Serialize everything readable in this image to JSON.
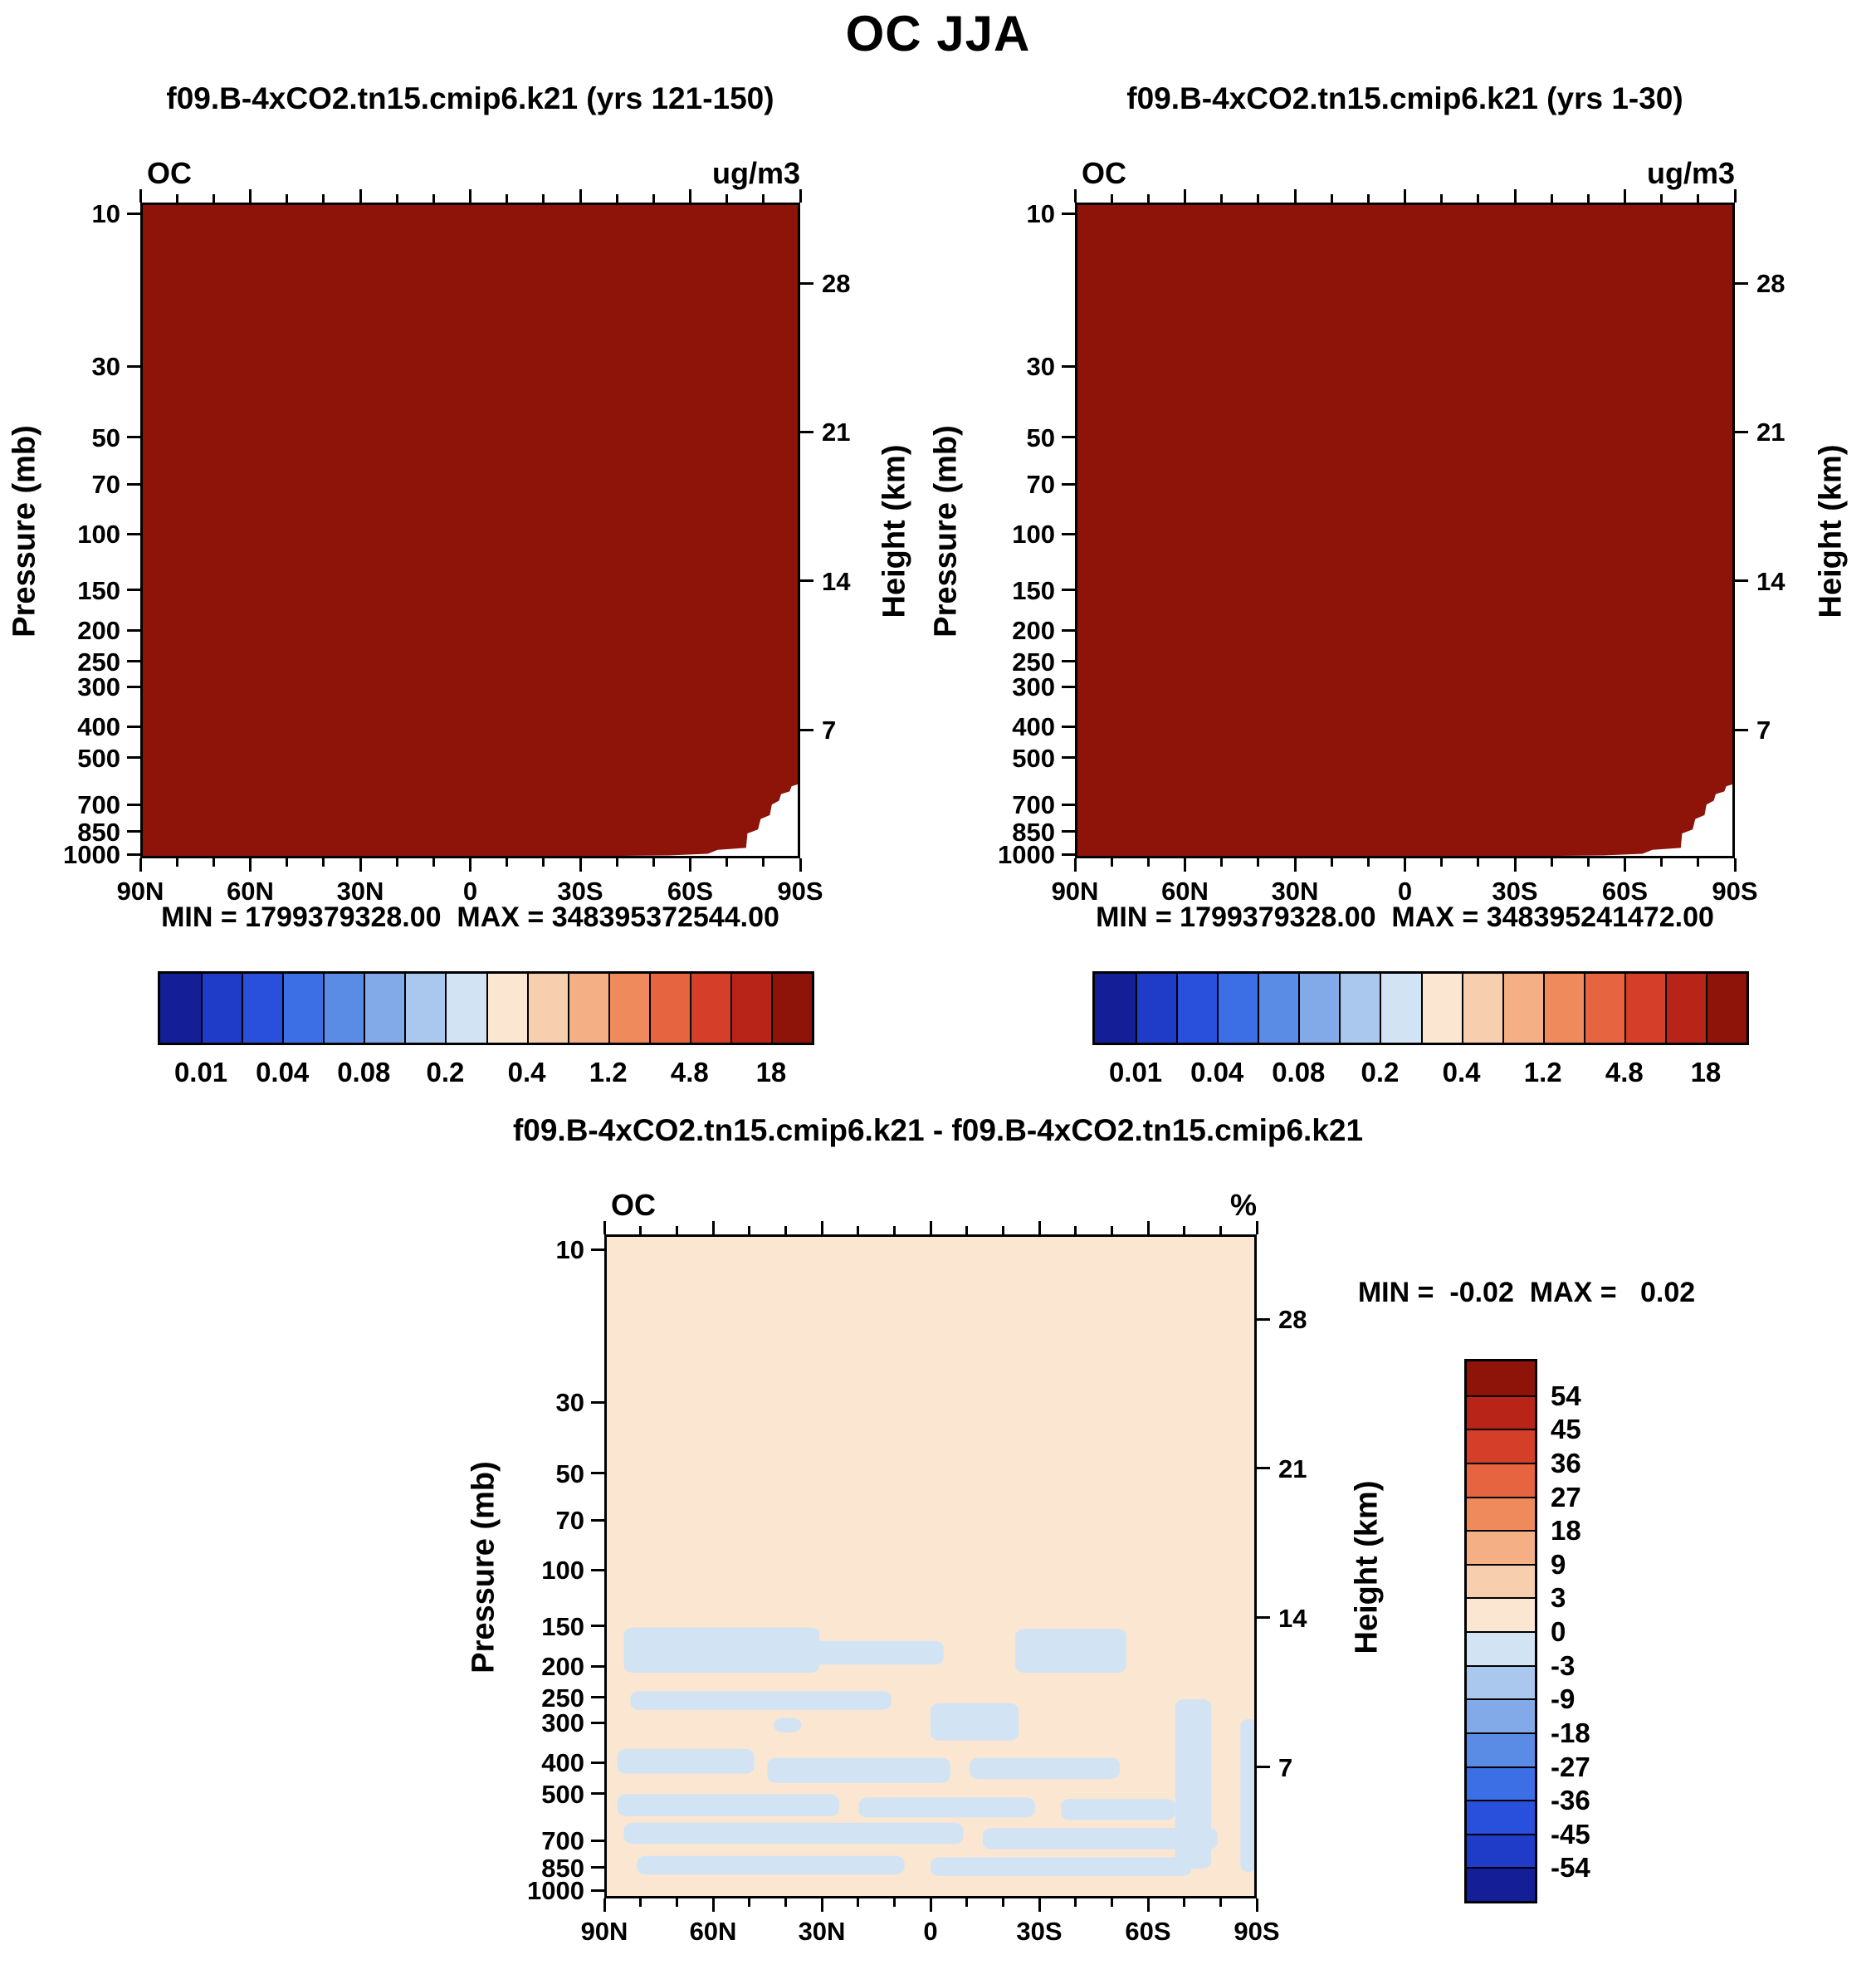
{
  "figure": {
    "title": "OC JJA"
  },
  "axes": {
    "pressure_label": "Pressure (mb)",
    "height_label": "Height (km)",
    "pressure_ticks": [
      "10",
      "30",
      "50",
      "70",
      "100",
      "150",
      "200",
      "250",
      "300",
      "400",
      "500",
      "700",
      "850",
      "1000"
    ],
    "height_ticks": [
      "28",
      "21",
      "14",
      "7"
    ],
    "lat_ticks": [
      "90N",
      "60N",
      "30N",
      "0",
      "30S",
      "60S",
      "90S"
    ]
  },
  "panels": {
    "left": {
      "title": "f09.B-4xCO2.tn15.cmip6.k21 (yrs 121-150)",
      "field_label": "OC",
      "units": "ug/m3",
      "stats": "MIN = 1799379328.00  MAX = 348395372544.00"
    },
    "right": {
      "title": "f09.B-4xCO2.tn15.cmip6.k21 (yrs 1-30)",
      "field_label": "OC",
      "units": "ug/m3",
      "stats": "MIN = 1799379328.00  MAX = 348395241472.00"
    },
    "diff": {
      "title": "f09.B-4xCO2.tn15.cmip6.k21 - f09.B-4xCO2.tn15.cmip6.k21",
      "field_label": "OC",
      "units": "%",
      "stats": "MIN =  -0.02  MAX =   0.02"
    }
  },
  "chart_data": [
    {
      "type": "heatmap",
      "panel": "left",
      "title": "f09.B-4xCO2.tn15.cmip6.k21 (yrs 121-150)",
      "field": "OC",
      "units": "ug/m3",
      "season": "JJA",
      "x_ticks": [
        "90N",
        "60N",
        "30N",
        "0",
        "30S",
        "60S",
        "90S"
      ],
      "pressure_ticks_mb": [
        10,
        30,
        50,
        70,
        100,
        150,
        200,
        250,
        300,
        400,
        500,
        700,
        850,
        1000
      ],
      "height_ticks_km": [
        28,
        21,
        14,
        7
      ],
      "y_scale": "log",
      "min": "1799379328.00",
      "max": "348395372544.00",
      "fill_color": "#8e1309",
      "fill_note": "entire cross-section saturated at highest colorbar bin (> 18 ug/m3)",
      "surface_gap_polygon": [
        [
          0.7,
          0.9965
        ],
        [
          0.8,
          0.9955
        ],
        [
          0.86,
          0.993
        ],
        [
          0.875,
          0.987
        ],
        [
          0.918,
          0.984
        ],
        [
          0.92,
          0.962
        ],
        [
          0.936,
          0.956
        ],
        [
          0.94,
          0.94
        ],
        [
          0.954,
          0.934
        ],
        [
          0.957,
          0.918
        ],
        [
          0.968,
          0.912
        ],
        [
          0.971,
          0.902
        ],
        [
          0.984,
          0.898
        ],
        [
          0.987,
          0.89
        ],
        [
          1.0,
          0.886
        ],
        [
          1.0,
          1.0
        ],
        [
          0.7,
          1.0
        ]
      ],
      "colorbar": {
        "orientation": "horizontal",
        "n_cells": 16,
        "colors": [
          "#141e96",
          "#1e3cc8",
          "#2850dc",
          "#3c6ee6",
          "#5a8ce6",
          "#82aae8",
          "#aac8ee",
          "#d2e4f4",
          "#fbe7d1",
          "#f8cfae",
          "#f5af85",
          "#ef8a5c",
          "#e66440",
          "#d53e28",
          "#b82417",
          "#8e1309"
        ],
        "labels": [
          "0.01",
          "0.04",
          "0.08",
          "0.2",
          "0.4",
          "1.2",
          "4.8",
          "18"
        ],
        "label_cell_boundaries": [
          1,
          3,
          5,
          7,
          9,
          11,
          13,
          15
        ]
      }
    },
    {
      "type": "heatmap",
      "panel": "right",
      "title": "f09.B-4xCO2.tn15.cmip6.k21 (yrs 1-30)",
      "field": "OC",
      "units": "ug/m3",
      "season": "JJA",
      "x_ticks": [
        "90N",
        "60N",
        "30N",
        "0",
        "30S",
        "60S",
        "90S"
      ],
      "pressure_ticks_mb": [
        10,
        30,
        50,
        70,
        100,
        150,
        200,
        250,
        300,
        400,
        500,
        700,
        850,
        1000
      ],
      "height_ticks_km": [
        28,
        21,
        14,
        7
      ],
      "y_scale": "log",
      "min": "1799379328.00",
      "max": "348395241472.00",
      "fill_color": "#8e1309",
      "fill_note": "entire cross-section saturated at highest colorbar bin (> 18 ug/m3)",
      "surface_gap_polygon": [
        [
          0.7,
          0.9965
        ],
        [
          0.8,
          0.9955
        ],
        [
          0.86,
          0.993
        ],
        [
          0.875,
          0.987
        ],
        [
          0.918,
          0.984
        ],
        [
          0.92,
          0.962
        ],
        [
          0.936,
          0.956
        ],
        [
          0.94,
          0.94
        ],
        [
          0.954,
          0.934
        ],
        [
          0.957,
          0.918
        ],
        [
          0.968,
          0.912
        ],
        [
          0.971,
          0.902
        ],
        [
          0.984,
          0.898
        ],
        [
          0.987,
          0.89
        ],
        [
          1.0,
          0.886
        ],
        [
          1.0,
          1.0
        ],
        [
          0.7,
          1.0
        ]
      ],
      "colorbar": {
        "orientation": "horizontal",
        "n_cells": 16,
        "colors": [
          "#141e96",
          "#1e3cc8",
          "#2850dc",
          "#3c6ee6",
          "#5a8ce6",
          "#82aae8",
          "#aac8ee",
          "#d2e4f4",
          "#fbe7d1",
          "#f8cfae",
          "#f5af85",
          "#ef8a5c",
          "#e66440",
          "#d53e28",
          "#b82417",
          "#8e1309"
        ],
        "labels": [
          "0.01",
          "0.04",
          "0.08",
          "0.2",
          "0.4",
          "1.2",
          "4.8",
          "18"
        ],
        "label_cell_boundaries": [
          1,
          3,
          5,
          7,
          9,
          11,
          13,
          15
        ]
      }
    },
    {
      "type": "heatmap",
      "panel": "diff",
      "title": "f09.B-4xCO2.tn15.cmip6.k21 - f09.B-4xCO2.tn15.cmip6.k21",
      "field": "OC",
      "units": "%",
      "season": "JJA",
      "x_ticks": [
        "90N",
        "60N",
        "30N",
        "0",
        "30S",
        "60S",
        "90S"
      ],
      "pressure_ticks_mb": [
        10,
        30,
        50,
        70,
        100,
        150,
        200,
        250,
        300,
        400,
        500,
        700,
        850,
        1000
      ],
      "height_ticks_km": [
        28,
        21,
        14,
        7
      ],
      "y_scale": "log",
      "min": "-0.02",
      "max": "0.02",
      "background_color": "#fbe7d1",
      "background_value_range": "0 to 3 %",
      "negative_patch_color": "#d2e4f3",
      "negative_patch_value_range": "-3 to 0 %",
      "negative_patches": [
        [
          0.03,
          0.592,
          0.33,
          0.66
        ],
        [
          0.31,
          0.612,
          0.52,
          0.648
        ],
        [
          0.63,
          0.594,
          0.8,
          0.66
        ],
        [
          0.04,
          0.688,
          0.44,
          0.716
        ],
        [
          0.5,
          0.706,
          0.635,
          0.762
        ],
        [
          0.26,
          0.728,
          0.302,
          0.75
        ],
        [
          0.875,
          0.7,
          0.93,
          0.955
        ],
        [
          0.02,
          0.775,
          0.23,
          0.812
        ],
        [
          0.25,
          0.788,
          0.53,
          0.826
        ],
        [
          0.56,
          0.788,
          0.79,
          0.82
        ],
        [
          0.02,
          0.843,
          0.36,
          0.876
        ],
        [
          0.39,
          0.848,
          0.66,
          0.878
        ],
        [
          0.7,
          0.85,
          0.875,
          0.882
        ],
        [
          0.03,
          0.886,
          0.55,
          0.918
        ],
        [
          0.58,
          0.894,
          0.94,
          0.926
        ],
        [
          0.05,
          0.936,
          0.46,
          0.964
        ],
        [
          0.5,
          0.938,
          0.9,
          0.966
        ],
        [
          0.975,
          0.73,
          1.0,
          0.96
        ]
      ],
      "colorbar": {
        "orientation": "vertical",
        "n_cells": 16,
        "colors": [
          "#8e1309",
          "#b82417",
          "#d53e28",
          "#e66440",
          "#ef8a5c",
          "#f5af85",
          "#f8cfae",
          "#fbe7d1",
          "#d2e4f3",
          "#aac8ee",
          "#82aae8",
          "#5a8ce6",
          "#3c6ee6",
          "#2850dc",
          "#1e3cc8",
          "#141e96"
        ],
        "labels": [
          "54",
          "45",
          "36",
          "27",
          "18",
          "9",
          "3",
          "0",
          "-3",
          "-9",
          "-18",
          "-27",
          "-36",
          "-45",
          "-54"
        ],
        "label_cell_boundaries": [
          1,
          2,
          3,
          4,
          5,
          6,
          7,
          8,
          9,
          10,
          11,
          12,
          13,
          14,
          15
        ]
      }
    }
  ]
}
